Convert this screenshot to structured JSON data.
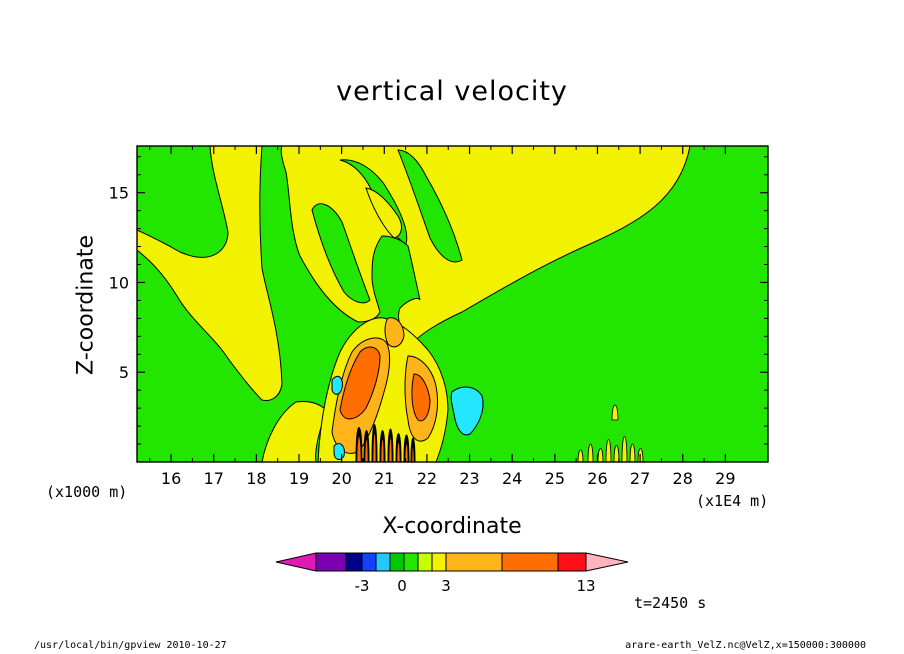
{
  "chart_data": {
    "type": "heatmap",
    "title": "vertical velocity",
    "xlabel": "X-coordinate",
    "ylabel": "Z-coordinate",
    "x_unit_label": "(x1E4 m)",
    "y_unit_label": "(x1000 m)",
    "xlim": [
      15.2,
      30.0
    ],
    "ylim": [
      0.0,
      17.6
    ],
    "x_ticks": [
      16,
      17,
      18,
      19,
      20,
      21,
      22,
      23,
      24,
      25,
      26,
      27,
      28,
      29
    ],
    "y_ticks": [
      5,
      10,
      15
    ],
    "colorbar": {
      "levels": [
        -5,
        -4,
        -3,
        -2,
        -1,
        0,
        1,
        2,
        3,
        5,
        9,
        13
      ],
      "labels": [
        "-3",
        "0",
        "3",
        "13"
      ],
      "colors": [
        "#e01ab6",
        "#7a00b4",
        "#00008c",
        "#1440ff",
        "#23c8ff",
        "#00c800",
        "#23e600",
        "#c8ff00",
        "#f2f200",
        "#ffb41a",
        "#ff6e00",
        "#ff0f19",
        "#ff7878",
        "#ffb4be"
      ]
    },
    "regions": {
      "background_green": "#22e600",
      "yellow_plume": "#f2f200",
      "orange_core": "#ffb41a",
      "red_core": "#ff6e00",
      "cyan_downdraft": "#23e6ff",
      "black_cells": "#000000"
    }
  },
  "annotations": {
    "time": "t=2450 s",
    "footer_left": "/usr/local/bin/gpview   2010-10-27",
    "footer_right": "arare-earth_VelZ.nc@VelZ,x=150000:300000"
  }
}
